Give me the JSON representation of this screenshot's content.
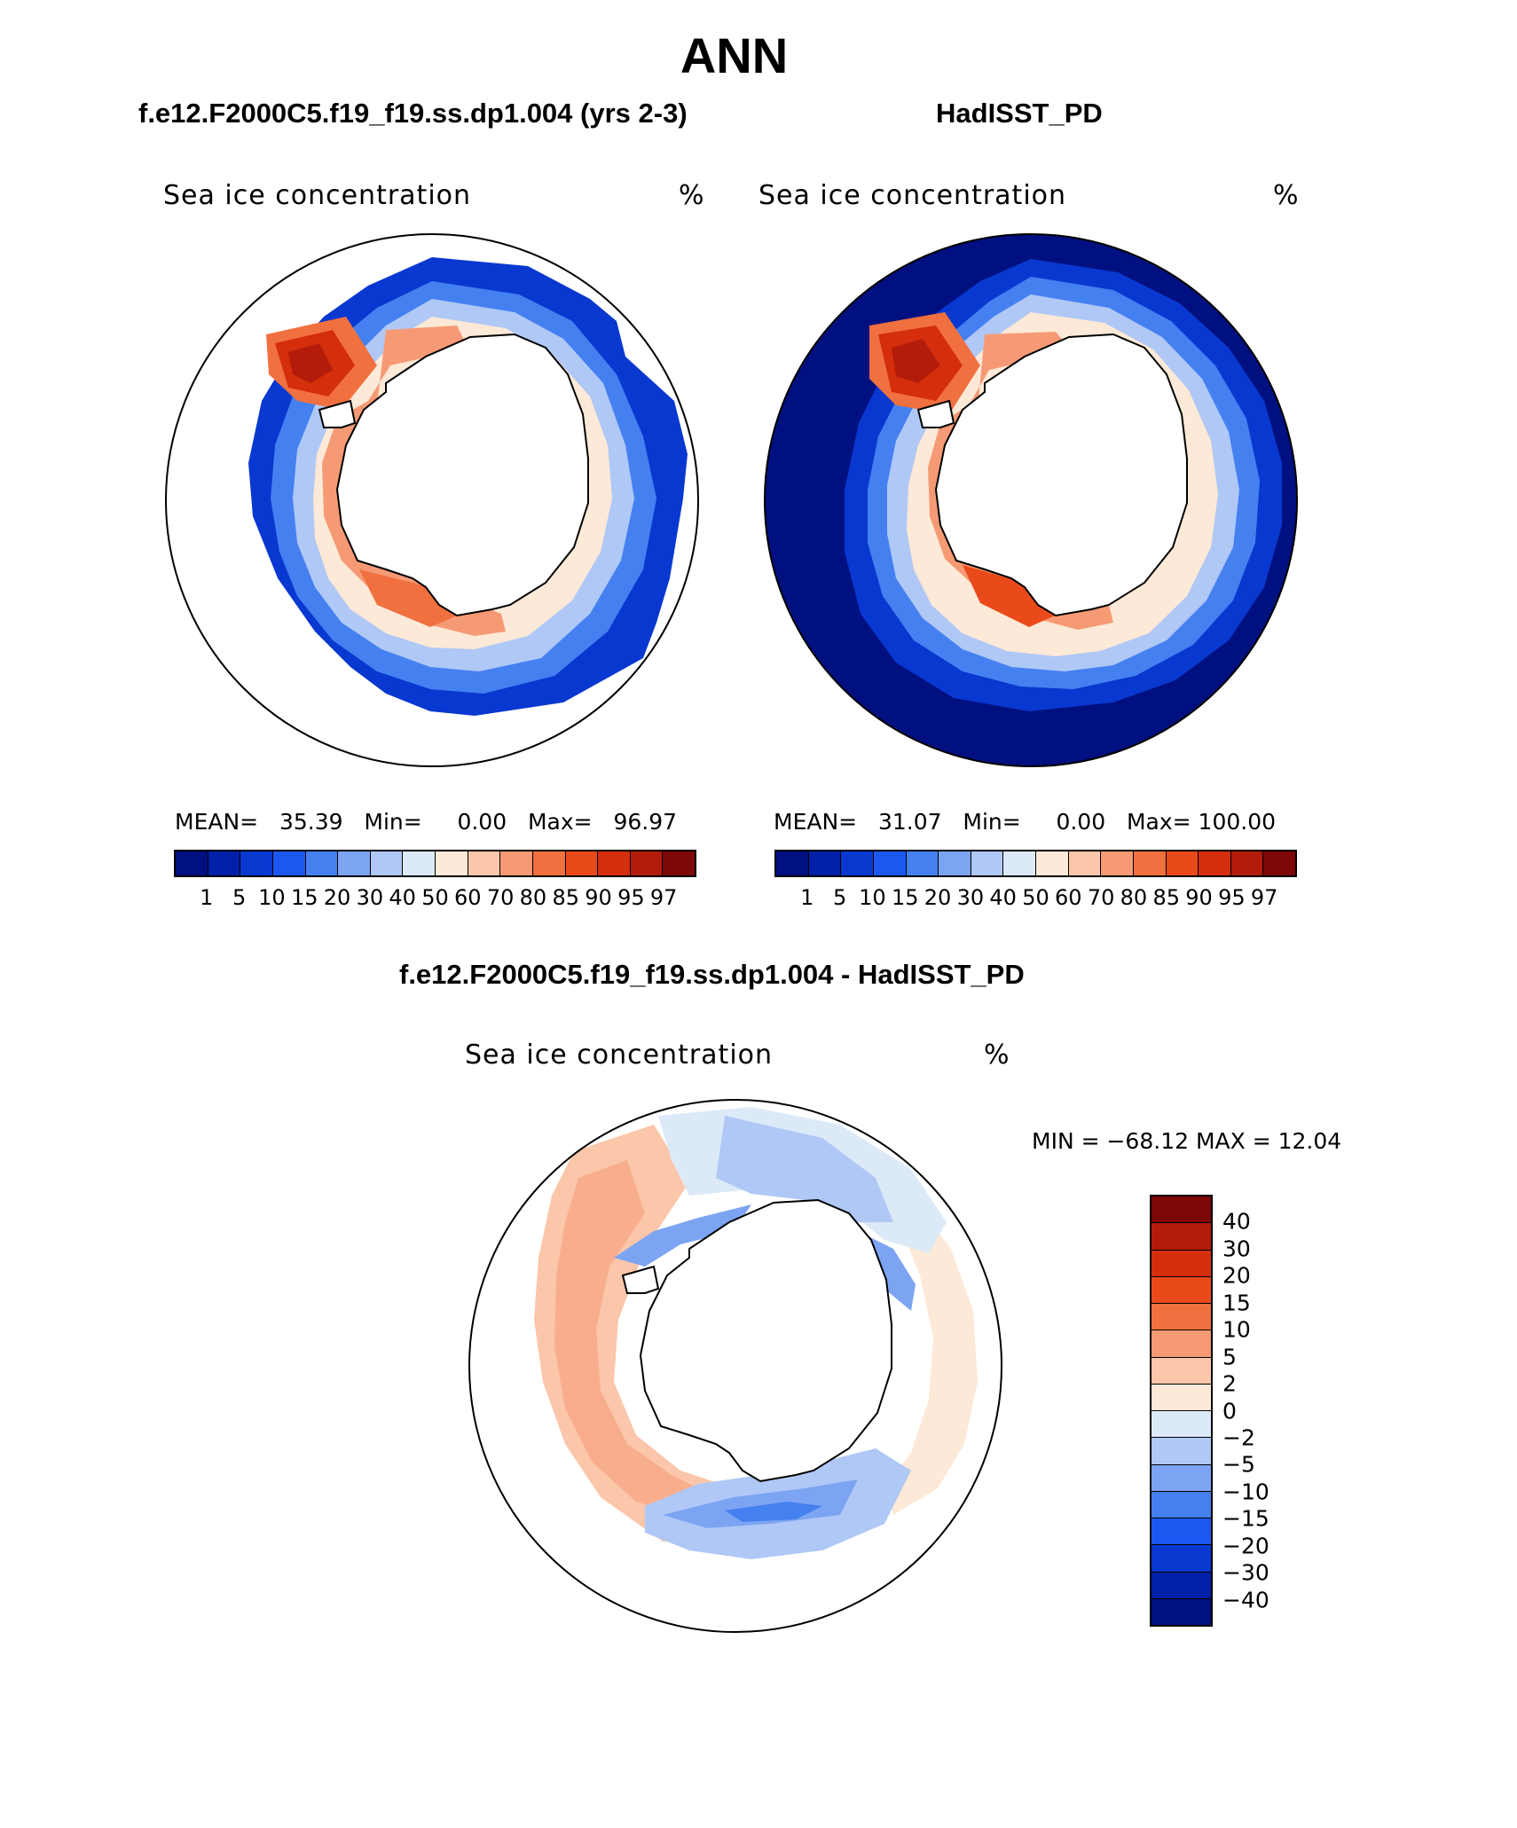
{
  "title": "ANN",
  "panels": [
    {
      "case": "f.e12.F2000C5.f19_f19.ss.dp1.004 (yrs 2-3)",
      "variable": "Sea ice concentration",
      "units": "%",
      "stats": {
        "mean_label": "MEAN=",
        "mean": "35.39",
        "min_label": "Min=",
        "min": "0.00",
        "max_label": "Max=",
        "max": "96.97"
      }
    },
    {
      "case": "HadISST_PD",
      "variable": "Sea ice concentration",
      "units": "%",
      "stats": {
        "mean_label": "MEAN=",
        "mean": "31.07",
        "min_label": "Min=",
        "min": "0.00",
        "max_label": "Max=",
        "max": "100.00"
      }
    }
  ],
  "difference": {
    "title": "f.e12.F2000C5.f19_f19.ss.dp1.004 - HadISST_PD",
    "variable": "Sea ice concentration",
    "units": "%",
    "minmax": "MIN = −68.12 MAX =   12.04"
  },
  "colorbar": {
    "ticks": [
      "1",
      "5",
      "10",
      "15",
      "20",
      "30",
      "40",
      "50",
      "60",
      "70",
      "80",
      "85",
      "90",
      "95",
      "97"
    ],
    "colors": [
      "#001080",
      "#0020a8",
      "#0838d0",
      "#1c58f0",
      "#4580f0",
      "#7ca4f2",
      "#b0c8f6",
      "#dceaf8",
      "#fde9d7",
      "#fbc6aa",
      "#f59a74",
      "#f1703f",
      "#ea4a1a",
      "#d42e0c",
      "#b31c0a",
      "#7e0808"
    ]
  },
  "diff_colorbar": {
    "ticks": [
      "40",
      "30",
      "20",
      "15",
      "10",
      "5",
      "2",
      "0",
      "−2",
      "−5",
      "−10",
      "−15",
      "−20",
      "−30",
      "−40"
    ],
    "colors": [
      "#7e0808",
      "#b31c0a",
      "#d42e0c",
      "#ea4a1a",
      "#f1703f",
      "#f59a74",
      "#fbc6aa",
      "#fde9d7",
      "#dceaf8",
      "#b0c8f6",
      "#7ca4f2",
      "#4580f0",
      "#1c58f0",
      "#0838d0",
      "#0020a8",
      "#001080"
    ]
  }
}
